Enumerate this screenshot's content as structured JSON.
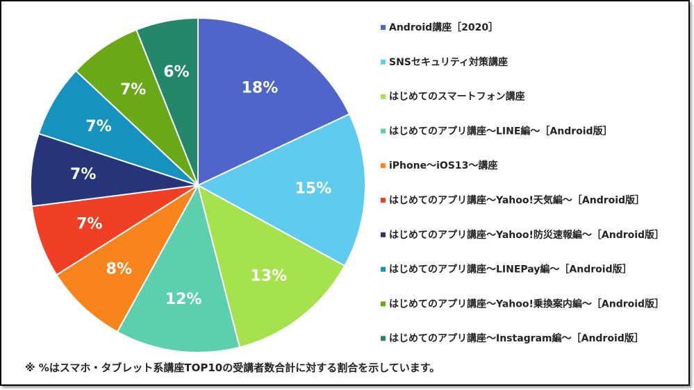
{
  "chart_data": {
    "type": "pie",
    "legend_position": "right",
    "start_angle_deg": 0,
    "direction": "clockwise",
    "slices": [
      {
        "name": "Android講座［2020］",
        "value": 18,
        "label": "18%",
        "color": "#4f65c9"
      },
      {
        "name": "SNSセキュリティ対策講座",
        "value": 15,
        "label": "15%",
        "color": "#5ecbef"
      },
      {
        "name": "はじめてのスマートフォン講座",
        "value": 13,
        "label": "13%",
        "color": "#a6e24e"
      },
      {
        "name": "はじめてのアプリ講座〜LINE編〜［Android版］",
        "value": 12,
        "label": "12%",
        "color": "#5ccfaf"
      },
      {
        "name": "iPhone〜iOS13〜講座",
        "value": 8,
        "label": "8%",
        "color": "#f7841c"
      },
      {
        "name": "はじめてのアプリ講座〜Yahoo!天気編〜［Android版］",
        "value": 7,
        "label": "7%",
        "color": "#f03f24"
      },
      {
        "name": "はじめてのアプリ講座〜Yahoo!防災速報編〜［Android版］",
        "value": 7,
        "label": "7%",
        "color": "#253578"
      },
      {
        "name": "はじめてのアプリ講座〜LINEPay編〜［Android版］",
        "value": 7,
        "label": "7%",
        "color": "#1592bd"
      },
      {
        "name": "はじめてのアプリ講座〜Yahoo!乗換案内編〜［Android版］",
        "value": 7,
        "label": "7%",
        "color": "#69a817"
      },
      {
        "name": "はじめてのアプリ講座〜Instagram編〜［Android版］",
        "value": 6,
        "label": "6%",
        "color": "#24866a"
      }
    ]
  },
  "footnote": "※ %はスマホ・タブレット系講座TOP10の受講者数合計に対する割合を示しています。"
}
